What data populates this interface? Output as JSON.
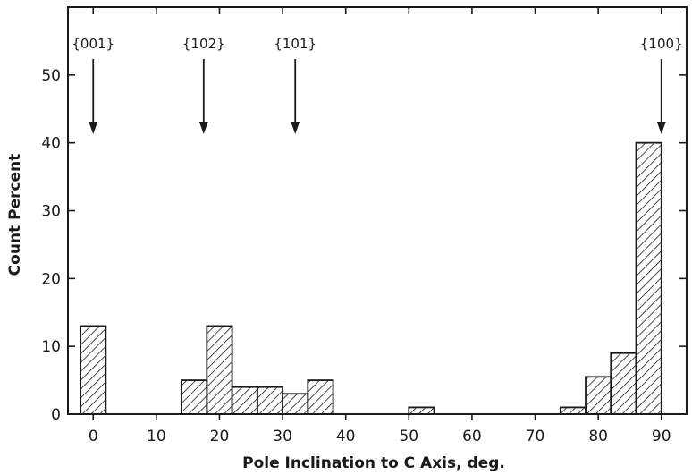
{
  "chart_data": {
    "type": "bar",
    "title": "",
    "xlabel": "Pole Inclination to C Axis, deg.",
    "ylabel": "Count Percent",
    "xlim": [
      -4,
      94
    ],
    "ylim": [
      0,
      60
    ],
    "xticks": [
      0,
      10,
      20,
      30,
      40,
      50,
      60,
      70,
      80,
      90
    ],
    "yticks": [
      0,
      10,
      20,
      30,
      40,
      50
    ],
    "bin_width": 4,
    "bars": [
      {
        "x0": -2,
        "x1": 2,
        "value": 13
      },
      {
        "x0": 14,
        "x1": 18,
        "value": 5
      },
      {
        "x0": 18,
        "x1": 22,
        "value": 13
      },
      {
        "x0": 22,
        "x1": 26,
        "value": 4
      },
      {
        "x0": 26,
        "x1": 30,
        "value": 4
      },
      {
        "x0": 30,
        "x1": 34,
        "value": 3
      },
      {
        "x0": 34,
        "x1": 38,
        "value": 5
      },
      {
        "x0": 50,
        "x1": 54,
        "value": 1
      },
      {
        "x0": 74,
        "x1": 78,
        "value": 1
      },
      {
        "x0": 78,
        "x1": 82,
        "value": 5.5
      },
      {
        "x0": 82,
        "x1": 86,
        "value": 9
      },
      {
        "x0": 86,
        "x1": 90,
        "value": 40
      }
    ],
    "annotations": [
      {
        "label": "{001}",
        "x": 0
      },
      {
        "label": "{102}",
        "x": 17.5
      },
      {
        "label": "{101}",
        "x": 32
      },
      {
        "label": "{100}",
        "x": 90
      }
    ],
    "grid": false,
    "fill_pattern": "diagonal-hatch"
  }
}
